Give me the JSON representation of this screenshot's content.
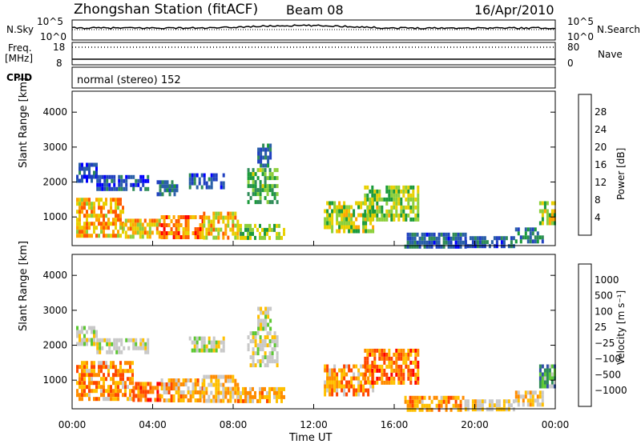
{
  "header": {
    "station": "Zhongshan Station (fitACF)",
    "beam": "Beam 08",
    "date": "16/Apr/2010"
  },
  "top_panels": {
    "nsky_label": "N.Sky",
    "nsky_ticks": [
      "10^5",
      "10^0"
    ],
    "nsearch_label": "N.Search",
    "nsearch_ticks": [
      "10^5",
      "10^0"
    ],
    "freq_label": "Freq.",
    "freq_unit": "[MHz]",
    "freq_ticks": [
      "18",
      "8"
    ],
    "nave_label": "Nave",
    "nave_ticks": [
      "80",
      "0"
    ],
    "cpid_label": "CPID",
    "cpid_text": "normal (stereo) 152"
  },
  "chart_data": [
    {
      "type": "heatmap",
      "title": "",
      "xlabel": "Time UT",
      "ylabel": "Slant Range [km]",
      "x_ticks": [
        "00:00",
        "04:00",
        "08:00",
        "12:00",
        "16:00",
        "20:00",
        "00:00"
      ],
      "xlim_hours": [
        0,
        24
      ],
      "y_ticks": [
        1000,
        2000,
        3000,
        4000
      ],
      "ylim": [
        180,
        4600
      ],
      "colorbar": {
        "label": "Power [dB]",
        "ticks": [
          "28",
          "24",
          "20",
          "16",
          "12",
          "8",
          "4"
        ],
        "colors": [
          "#0000ff",
          "#2040c0",
          "#2a5fa8",
          "#2e8b57",
          "#1a9a3a",
          "#8ccf3a",
          "#e8d000",
          "#ffa500",
          "#ff5a00",
          "#ff0000"
        ]
      },
      "regions": [
        {
          "t": [
            0.2,
            1.2
          ],
          "r": [
            2050,
            2550
          ],
          "level": 0.15
        },
        {
          "t": [
            1.2,
            3.8
          ],
          "r": [
            1850,
            2200
          ],
          "level": 0.15
        },
        {
          "t": [
            4.2,
            5.2
          ],
          "r": [
            1700,
            2050
          ],
          "level": 0.25
        },
        {
          "t": [
            5.8,
            7.5
          ],
          "r": [
            1900,
            2250
          ],
          "level": 0.2
        },
        {
          "t": [
            8.7,
            10.2
          ],
          "r": [
            1400,
            2400
          ],
          "level": 0.45
        },
        {
          "t": [
            9.2,
            9.8
          ],
          "r": [
            2500,
            3100
          ],
          "level": 0.25
        },
        {
          "t": [
            0.2,
            2.5
          ],
          "r": [
            450,
            1550
          ],
          "level": 0.75
        },
        {
          "t": [
            2.5,
            4.4
          ],
          "r": [
            400,
            950
          ],
          "level": 0.7
        },
        {
          "t": [
            4.4,
            6.5
          ],
          "r": [
            400,
            1050
          ],
          "level": 0.85
        },
        {
          "t": [
            6.5,
            8.2
          ],
          "r": [
            450,
            1150
          ],
          "level": 0.7
        },
        {
          "t": [
            8.2,
            10.5
          ],
          "r": [
            350,
            800
          ],
          "level": 0.55
        },
        {
          "t": [
            12.5,
            15.0
          ],
          "r": [
            550,
            1450
          ],
          "level": 0.6
        },
        {
          "t": [
            14.5,
            17.2
          ],
          "r": [
            900,
            1900
          ],
          "level": 0.55
        },
        {
          "t": [
            16.5,
            19.5
          ],
          "r": [
            200,
            550
          ],
          "level": 0.2
        },
        {
          "t": [
            19.5,
            22.0
          ],
          "r": [
            200,
            450
          ],
          "level": 0.2
        },
        {
          "t": [
            22.0,
            23.4
          ],
          "r": [
            350,
            700
          ],
          "level": 0.3
        },
        {
          "t": [
            23.2,
            24.0
          ],
          "r": [
            800,
            1450
          ],
          "level": 0.6
        }
      ]
    },
    {
      "type": "heatmap",
      "title": "",
      "xlabel": "Time UT",
      "ylabel": "Slant Range [km]",
      "x_ticks": [
        "00:00",
        "04:00",
        "08:00",
        "12:00",
        "16:00",
        "20:00",
        "00:00"
      ],
      "xlim_hours": [
        0,
        24
      ],
      "y_ticks": [
        1000,
        2000,
        3000,
        4000
      ],
      "ylim": [
        180,
        4600
      ],
      "colorbar": {
        "label": "Velocity [m s⁻¹]",
        "ticks": [
          "1000",
          "500",
          "100",
          "25",
          "−25",
          "−100",
          "−500",
          "−1000"
        ],
        "colors": [
          "#ff0000",
          "#ff4500",
          "#ff8c00",
          "#ffc000",
          "#c8c8c8",
          "#c8c8c8",
          "#5cc832",
          "#2e8b57",
          "#3050a8",
          "#0000ff"
        ]
      },
      "regions": [
        {
          "t": [
            0.2,
            1.2
          ],
          "r": [
            2050,
            2550
          ],
          "level": 0.5
        },
        {
          "t": [
            1.2,
            3.8
          ],
          "r": [
            1850,
            2200
          ],
          "level": 0.5
        },
        {
          "t": [
            5.8,
            7.5
          ],
          "r": [
            1900,
            2250
          ],
          "level": 0.5
        },
        {
          "t": [
            8.7,
            10.2
          ],
          "r": [
            1400,
            2400
          ],
          "level": 0.48
        },
        {
          "t": [
            9.2,
            9.8
          ],
          "r": [
            2500,
            3100
          ],
          "level": 0.45
        },
        {
          "t": [
            0.2,
            3.0
          ],
          "r": [
            450,
            1550
          ],
          "level": 0.25
        },
        {
          "t": [
            3.0,
            4.4
          ],
          "r": [
            400,
            950
          ],
          "level": 0.15
        },
        {
          "t": [
            4.4,
            6.5
          ],
          "r": [
            400,
            1050
          ],
          "level": 0.3
        },
        {
          "t": [
            6.5,
            8.2
          ],
          "r": [
            450,
            1150
          ],
          "level": 0.35
        },
        {
          "t": [
            8.2,
            10.5
          ],
          "r": [
            350,
            800
          ],
          "level": 0.3
        },
        {
          "t": [
            12.5,
            15.0
          ],
          "r": [
            550,
            1450
          ],
          "level": 0.25
        },
        {
          "t": [
            14.5,
            17.2
          ],
          "r": [
            900,
            1900
          ],
          "level": 0.2
        },
        {
          "t": [
            16.5,
            19.5
          ],
          "r": [
            200,
            550
          ],
          "level": 0.25
        },
        {
          "t": [
            19.5,
            22.0
          ],
          "r": [
            200,
            450
          ],
          "level": 0.4
        },
        {
          "t": [
            22.0,
            23.4
          ],
          "r": [
            350,
            700
          ],
          "level": 0.35
        },
        {
          "t": [
            23.2,
            24.0
          ],
          "r": [
            800,
            1450
          ],
          "level": 0.75
        }
      ]
    }
  ]
}
